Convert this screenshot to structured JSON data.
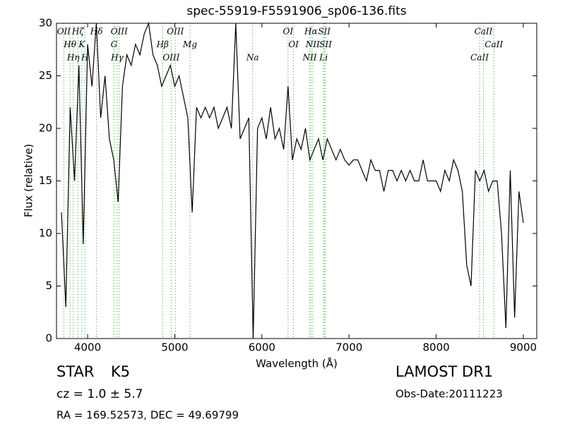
{
  "chart_data": {
    "type": "line",
    "title": "spec-55919-F5591906_sp06-136.fits",
    "x_label": "Wavelength (Å)",
    "y_label": "Flux (relative)",
    "x": [
      3700,
      3750,
      3800,
      3850,
      3900,
      3950,
      4000,
      4050,
      4100,
      4150,
      4200,
      4250,
      4300,
      4350,
      4400,
      4450,
      4500,
      4550,
      4600,
      4650,
      4700,
      4750,
      4800,
      4850,
      4900,
      4950,
      5000,
      5050,
      5100,
      5150,
      5200,
      5250,
      5300,
      5350,
      5400,
      5450,
      5500,
      5550,
      5600,
      5650,
      5700,
      5750,
      5800,
      5850,
      5900,
      5950,
      6000,
      6050,
      6100,
      6150,
      6200,
      6250,
      6300,
      6350,
      6400,
      6450,
      6500,
      6550,
      6600,
      6650,
      6700,
      6750,
      6800,
      6850,
      6900,
      6950,
      7000,
      7050,
      7100,
      7150,
      7200,
      7250,
      7300,
      7350,
      7400,
      7450,
      7500,
      7550,
      7600,
      7650,
      7700,
      7750,
      7800,
      7850,
      7900,
      7950,
      8000,
      8050,
      8100,
      8150,
      8200,
      8250,
      8300,
      8350,
      8400,
      8450,
      8500,
      8550,
      8600,
      8650,
      8700,
      8750,
      8800,
      8850,
      8900,
      8950,
      9000
    ],
    "series": [
      {
        "color": "#000000",
        "values": [
          12,
          3,
          22,
          15,
          26,
          9,
          28,
          24,
          30,
          21,
          25,
          19,
          17,
          13,
          24,
          27,
          26,
          28,
          27,
          29,
          30,
          27,
          26,
          24,
          25,
          26,
          24,
          25,
          23,
          21,
          12,
          22,
          21,
          22,
          21,
          22,
          20,
          21,
          22,
          20,
          30,
          19,
          20,
          21,
          0,
          20,
          21,
          19,
          22,
          19,
          20,
          18,
          24,
          17,
          19,
          18,
          20,
          17,
          18,
          19,
          17,
          19,
          18,
          17,
          18,
          17,
          16.5,
          17,
          17,
          16,
          15,
          17,
          16,
          16,
          14,
          16,
          16,
          15,
          16,
          15,
          16,
          15,
          15,
          17,
          15,
          15,
          15,
          14,
          16,
          15,
          17,
          16,
          14,
          7,
          5,
          16,
          15,
          16,
          14,
          15,
          15,
          10,
          1,
          16,
          2,
          14,
          11
        ]
      }
    ],
    "xlim": [
      3643,
      9154
    ],
    "ylim": [
      0,
      30
    ],
    "xticks": [
      4000,
      5000,
      6000,
      7000,
      8000,
      9000
    ],
    "yticks": [
      0,
      5,
      10,
      15,
      20,
      25,
      30
    ],
    "line_color": "#33aa33",
    "lines": [
      {
        "label": "OII",
        "x": 3727
      },
      {
        "label": "Hθ",
        "x": 3798
      },
      {
        "label": "Hη",
        "x": 3835
      },
      {
        "label": "Hζ",
        "x": 3889
      },
      {
        "label": "K",
        "x": 3934
      },
      {
        "label": "H",
        "x": 3969
      },
      {
        "label": "Hδ",
        "x": 4102
      },
      {
        "label": "G",
        "x": 4304
      },
      {
        "label": "Hγ",
        "x": 4340
      },
      {
        "label": "OIII",
        "x": 4363
      },
      {
        "label": "Hβ",
        "x": 4861
      },
      {
        "label": "OIII",
        "x": 4959
      },
      {
        "label": "OIII",
        "x": 5007
      },
      {
        "label": "Mg",
        "x": 5175
      },
      {
        "label": "Na",
        "x": 5894
      },
      {
        "label": "OI",
        "x": 6300
      },
      {
        "label": "OI",
        "x": 6363
      },
      {
        "label": "NII",
        "x": 6548
      },
      {
        "label": "Hα",
        "x": 6563
      },
      {
        "label": "NII",
        "x": 6583
      },
      {
        "label": "Li",
        "x": 6708
      },
      {
        "label": "SII",
        "x": 6716
      },
      {
        "label": "SII",
        "x": 6731
      },
      {
        "label": "CaII",
        "x": 8498
      },
      {
        "label": "CaII",
        "x": 8542
      },
      {
        "label": "CaII",
        "x": 8662
      }
    ]
  },
  "info": {
    "class": "STAR",
    "subclass": "K5",
    "cz": "cz = 1.0 ± 5.7",
    "coords": "RA = 169.52573, DEC = 49.69799",
    "survey": "LAMOST DR1",
    "obs_date": "Obs-Date:20111223"
  }
}
